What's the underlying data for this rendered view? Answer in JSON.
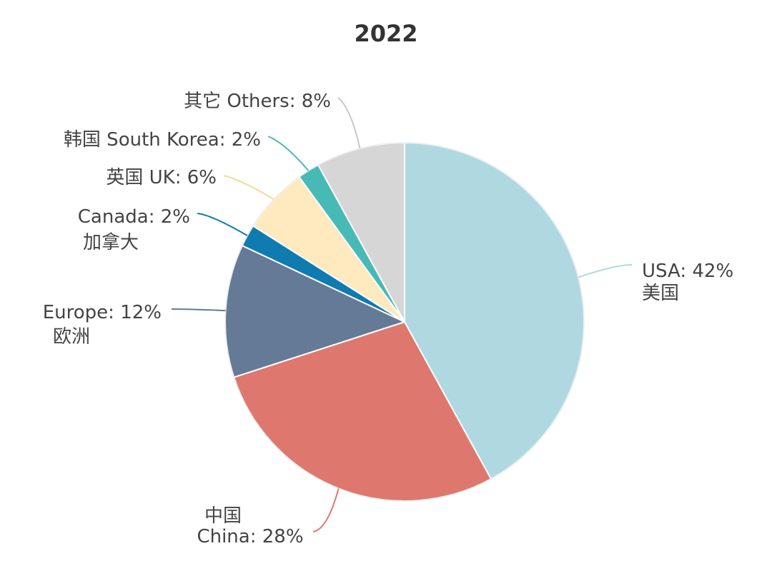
{
  "chart_data": {
    "type": "pie",
    "title": "2022",
    "unit": "%",
    "legend": "none",
    "slices": [
      {
        "label_en": "USA",
        "label_zh": "美国",
        "label_text": "USA: 42%",
        "value": 42,
        "color": "#b0d8e0"
      },
      {
        "label_en": "China",
        "label_zh": "中国",
        "label_text": "China: 28%",
        "value": 28,
        "color": "#de786e"
      },
      {
        "label_en": "Europe",
        "label_zh": "欧洲",
        "label_text": "Europe: 12%",
        "value": 12,
        "color": "#647a96"
      },
      {
        "label_en": "Canada",
        "label_zh": "加拿大",
        "label_text": "Canada: 2%",
        "value": 2,
        "color": "#0f7bb0"
      },
      {
        "label_en": "UK",
        "label_zh": "英国",
        "label_text": "英国 UK: 6%",
        "value": 6,
        "color": "#ffe9bf"
      },
      {
        "label_en": "South Korea",
        "label_zh": "韩国",
        "label_text": "韩国 South Korea: 2%",
        "value": 2,
        "color": "#47bab6"
      },
      {
        "label_en": "Others",
        "label_zh": "其它",
        "label_text": "其它 Others: 8%",
        "value": 8,
        "color": "#d6d6d6"
      }
    ]
  }
}
